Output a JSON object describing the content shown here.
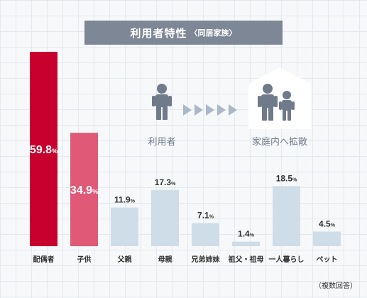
{
  "title": "利用者特性",
  "subtitle": "〈同居家族〉",
  "footnote": "（複数回答）",
  "illustration": {
    "user_label": "利用者",
    "family_label": "家庭内へ拡散",
    "user_icon": "person-icon",
    "family_icon": "family-icon",
    "arrow_icon": "chevron-right-icon"
  },
  "colors": {
    "highlight1": "#c8002e",
    "highlight2": "#e05a78",
    "normal": "#cfdde8",
    "title_bg": "#7d8796",
    "figure": "#6f7a8a",
    "arrow": "#aab8c8"
  },
  "chart_data": {
    "type": "bar",
    "title": "利用者特性〈同居家族〉",
    "unit": "%",
    "categories": [
      "配偶者",
      "子供",
      "父親",
      "母親",
      "兄弟姉妹",
      "祖父・祖母",
      "一人暮らし",
      "ペット"
    ],
    "values": [
      59.8,
      34.9,
      11.9,
      17.3,
      7.1,
      1.4,
      18.5,
      4.5
    ],
    "value_labels": [
      "59.8",
      "34.9",
      "11.9",
      "17.3",
      "7.1",
      "1.4",
      "18.5",
      "4.5"
    ],
    "ylim": [
      0,
      60
    ],
    "grid": true,
    "legend": "none"
  }
}
